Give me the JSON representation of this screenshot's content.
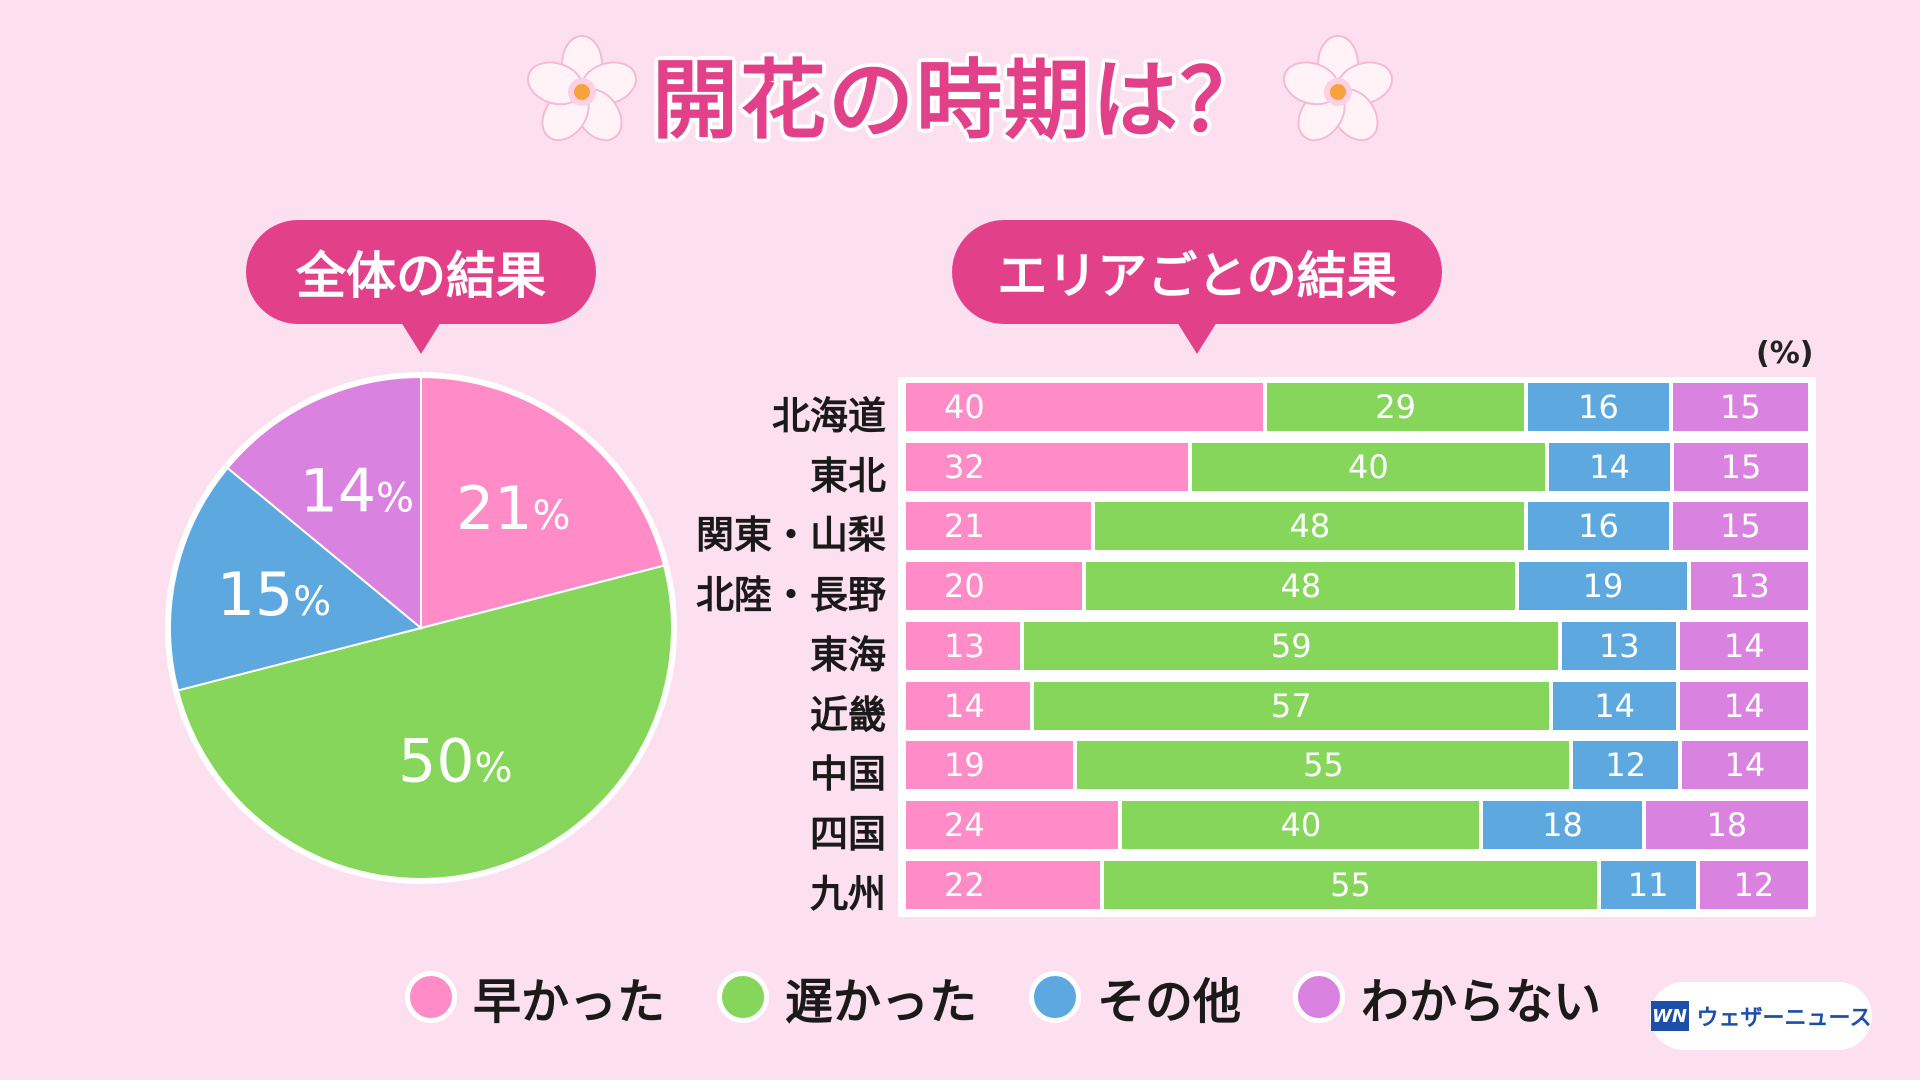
{
  "title": "開花の時期は？",
  "overall_label": "全体の結果",
  "area_label": "エリアごとの結果",
  "unit": "(%)",
  "colors": {
    "early": "#ff8cc6",
    "late": "#86d65c",
    "other": "#5ea8e0",
    "unknown": "#da82e0",
    "accent": "#e2418a"
  },
  "chart_data": [
    {
      "type": "pie",
      "categories": [
        "早かった",
        "遅かった",
        "その他",
        "わからない"
      ],
      "values": [
        21,
        50,
        15,
        14
      ],
      "value_labels": [
        "21",
        "50",
        "15",
        "14"
      ],
      "percent_sign": "%"
    },
    {
      "type": "bar",
      "orientation": "horizontal",
      "stacked": true,
      "categories": [
        "北海道",
        "東北",
        "関東・山梨",
        "北陸・長野",
        "東海",
        "近畿",
        "中国",
        "四国",
        "九州"
      ],
      "series": [
        {
          "name": "早かった",
          "values": [
            40,
            32,
            21,
            20,
            13,
            14,
            19,
            24,
            22
          ]
        },
        {
          "name": "遅かった",
          "values": [
            29,
            40,
            48,
            48,
            59,
            57,
            55,
            40,
            55
          ]
        },
        {
          "name": "その他",
          "values": [
            16,
            14,
            16,
            19,
            13,
            14,
            12,
            18,
            11
          ]
        },
        {
          "name": "わからない",
          "values": [
            15,
            15,
            15,
            13,
            14,
            14,
            14,
            18,
            12
          ]
        }
      ]
    }
  ],
  "legend": [
    {
      "label": "早かった",
      "color": "#ff8cc6"
    },
    {
      "label": "遅かった",
      "color": "#86d65c"
    },
    {
      "label": "その他",
      "color": "#5ea8e0"
    },
    {
      "label": "わからない",
      "color": "#da82e0"
    }
  ],
  "brand": {
    "logo": "WN",
    "name": "ウェザーニュース"
  }
}
